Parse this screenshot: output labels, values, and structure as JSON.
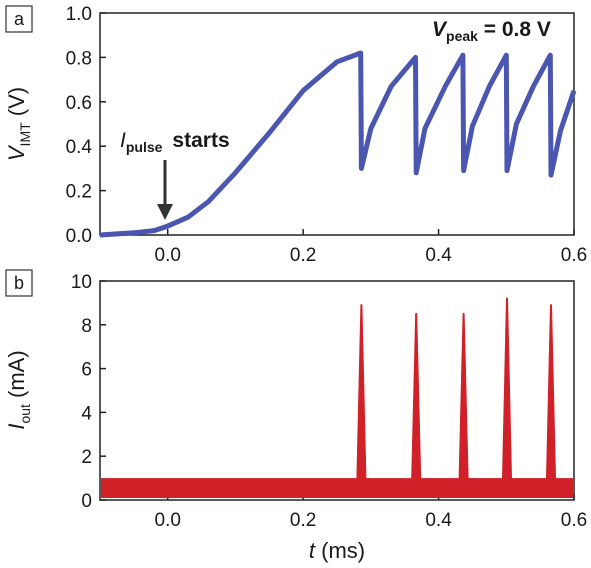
{
  "chart_data": [
    {
      "panel_label": "a",
      "type": "line",
      "color": "#4a56b0",
      "xlim": [
        -0.1,
        0.6
      ],
      "ylim": [
        0.0,
        1.0
      ],
      "xticks": [
        "0.0",
        "0.2",
        "0.4",
        "0.6"
      ],
      "yticks": [
        "0.0",
        "0.2",
        "0.4",
        "0.6",
        "0.8",
        "1.0"
      ],
      "ylabel": {
        "main": "V",
        "sub": "IMT",
        "rest": " (V)"
      },
      "annotation_peak": {
        "main": "V",
        "sub": "peak",
        "rest": " = 0.8 V"
      },
      "annotation_pulse": {
        "main": "I",
        "sub": "pulse",
        "rest": "starts"
      },
      "series": [
        {
          "x": [
            -0.1,
            -0.05,
            -0.02,
            0.0,
            0.03,
            0.06,
            0.1,
            0.15,
            0.2,
            0.25,
            0.285,
            0.286,
            0.3,
            0.33,
            0.366,
            0.367,
            0.38,
            0.41,
            0.436,
            0.437,
            0.45,
            0.475,
            0.5,
            0.501,
            0.515,
            0.54,
            0.565,
            0.566,
            0.58,
            0.6
          ],
          "y": [
            0.0,
            0.01,
            0.02,
            0.04,
            0.08,
            0.15,
            0.28,
            0.46,
            0.65,
            0.78,
            0.82,
            0.3,
            0.48,
            0.67,
            0.8,
            0.28,
            0.48,
            0.67,
            0.81,
            0.29,
            0.49,
            0.67,
            0.81,
            0.29,
            0.5,
            0.67,
            0.81,
            0.27,
            0.47,
            0.65
          ]
        }
      ]
    },
    {
      "panel_label": "b",
      "type": "line",
      "color": "#d02028",
      "xlim": [
        -0.1,
        0.6
      ],
      "ylim": [
        0,
        10
      ],
      "xticks": [
        "0.0",
        "0.2",
        "0.4",
        "0.6"
      ],
      "yticks": [
        "0",
        "2",
        "4",
        "6",
        "8",
        "10"
      ],
      "ylabel": {
        "main": "I",
        "sub": "out",
        "rest": " (mA)"
      },
      "xlabel": {
        "main": "t",
        "rest": " (ms)"
      },
      "baseline_level": 1.0,
      "spikes": [
        {
          "x": 0.286,
          "peak": 8.9
        },
        {
          "x": 0.367,
          "peak": 8.5
        },
        {
          "x": 0.437,
          "peak": 8.5
        },
        {
          "x": 0.501,
          "peak": 9.2
        },
        {
          "x": 0.566,
          "peak": 8.9
        }
      ]
    }
  ]
}
